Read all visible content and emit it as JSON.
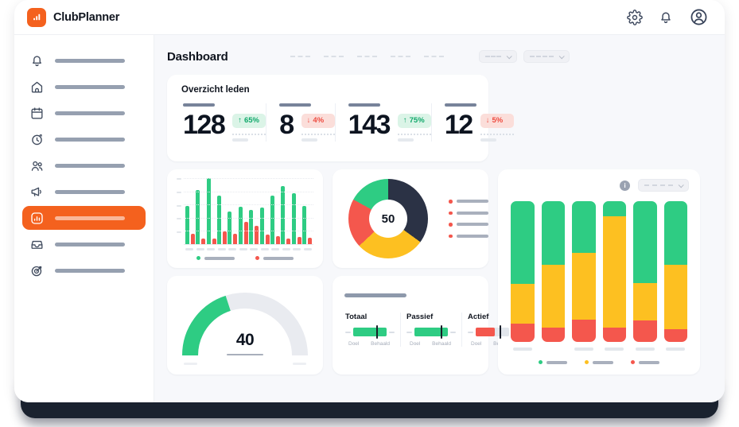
{
  "app": {
    "name": "ClubPlanner"
  },
  "colors": {
    "orange": "#f4611e",
    "green": "#2ecc83",
    "red": "#f4574d",
    "yellow": "#fdc021",
    "navy": "#2b3245"
  },
  "header": {
    "icons": [
      "settings",
      "notifications",
      "account"
    ]
  },
  "sidebar": {
    "items": [
      {
        "icon": "bell",
        "active": false
      },
      {
        "icon": "home",
        "active": false
      },
      {
        "icon": "calendar",
        "active": false
      },
      {
        "icon": "clock",
        "active": false
      },
      {
        "icon": "users",
        "active": false
      },
      {
        "icon": "megaphone",
        "active": false
      },
      {
        "icon": "chart",
        "active": true
      },
      {
        "icon": "inbox",
        "active": false
      },
      {
        "icon": "target",
        "active": false
      }
    ]
  },
  "page": {
    "title": "Dashboard",
    "filter_placeholder_count": 5,
    "select_count": 2
  },
  "overview_card": {
    "title": "Overzicht leden",
    "stats": [
      {
        "value": "128",
        "delta": "65%",
        "direction": "up"
      },
      {
        "value": "8",
        "delta": "4%",
        "direction": "down"
      },
      {
        "value": "143",
        "delta": "75%",
        "direction": "up"
      },
      {
        "value": "12",
        "delta": "5%",
        "direction": "down"
      }
    ]
  },
  "chart_data": [
    {
      "id": "members_bar",
      "type": "bar",
      "title": "",
      "categories": [
        "",
        "",
        "",
        "",
        "",
        "",
        "",
        "",
        "",
        "",
        "",
        ""
      ],
      "series": [
        {
          "name": "green",
          "color": "green",
          "values": [
            58,
            82,
            100,
            73,
            49,
            57,
            52,
            55,
            73,
            88,
            77,
            58
          ]
        },
        {
          "name": "red",
          "color": "red",
          "values": [
            16,
            9,
            9,
            19,
            16,
            34,
            28,
            14,
            12,
            8,
            11,
            10
          ]
        }
      ],
      "ylim": [
        0,
        100
      ],
      "grid": true,
      "legend_position": "bottom",
      "legend": [
        "green",
        "red"
      ]
    },
    {
      "id": "status_donut",
      "type": "pie",
      "center_value": "50",
      "segments": [
        {
          "color": "navy",
          "value": 35
        },
        {
          "color": "yellow",
          "value": 28
        },
        {
          "color": "red",
          "value": 20
        },
        {
          "color": "green",
          "value": 17
        }
      ],
      "legend_items": 4,
      "legend_position": "right"
    },
    {
      "id": "progress_gauge",
      "type": "gauge",
      "value": 40,
      "max": 100,
      "fill_color": "green"
    },
    {
      "id": "goal_bullets",
      "type": "bullet",
      "axis_left_label": "Doel",
      "axis_right_label": "Behaald",
      "items": [
        {
          "label": "Totaal",
          "color": "green",
          "fill_pct": 100,
          "marker_pct": 70
        },
        {
          "label": "Passief",
          "color": "green",
          "fill_pct": 100,
          "marker_pct": 78
        },
        {
          "label": "Actief",
          "color": "red",
          "fill_pct": 58,
          "marker_pct": 72
        }
      ]
    },
    {
      "id": "stacked_columns",
      "type": "bar",
      "stacked": true,
      "bars": [
        {
          "green": 59,
          "yellow": 28,
          "red": 13,
          "tick": true
        },
        {
          "green": 45,
          "yellow": 45,
          "red": 10,
          "tick": false
        },
        {
          "green": 37,
          "yellow": 47,
          "red": 16,
          "tick": true
        },
        {
          "green": 11,
          "yellow": 79,
          "red": 10,
          "tick": true
        },
        {
          "green": 58,
          "yellow": 27,
          "red": 15,
          "tick": true
        },
        {
          "green": 45,
          "yellow": 46,
          "red": 9,
          "tick": true
        }
      ],
      "legend": [
        "green",
        "yellow",
        "red"
      ],
      "legend_position": "bottom"
    }
  ]
}
